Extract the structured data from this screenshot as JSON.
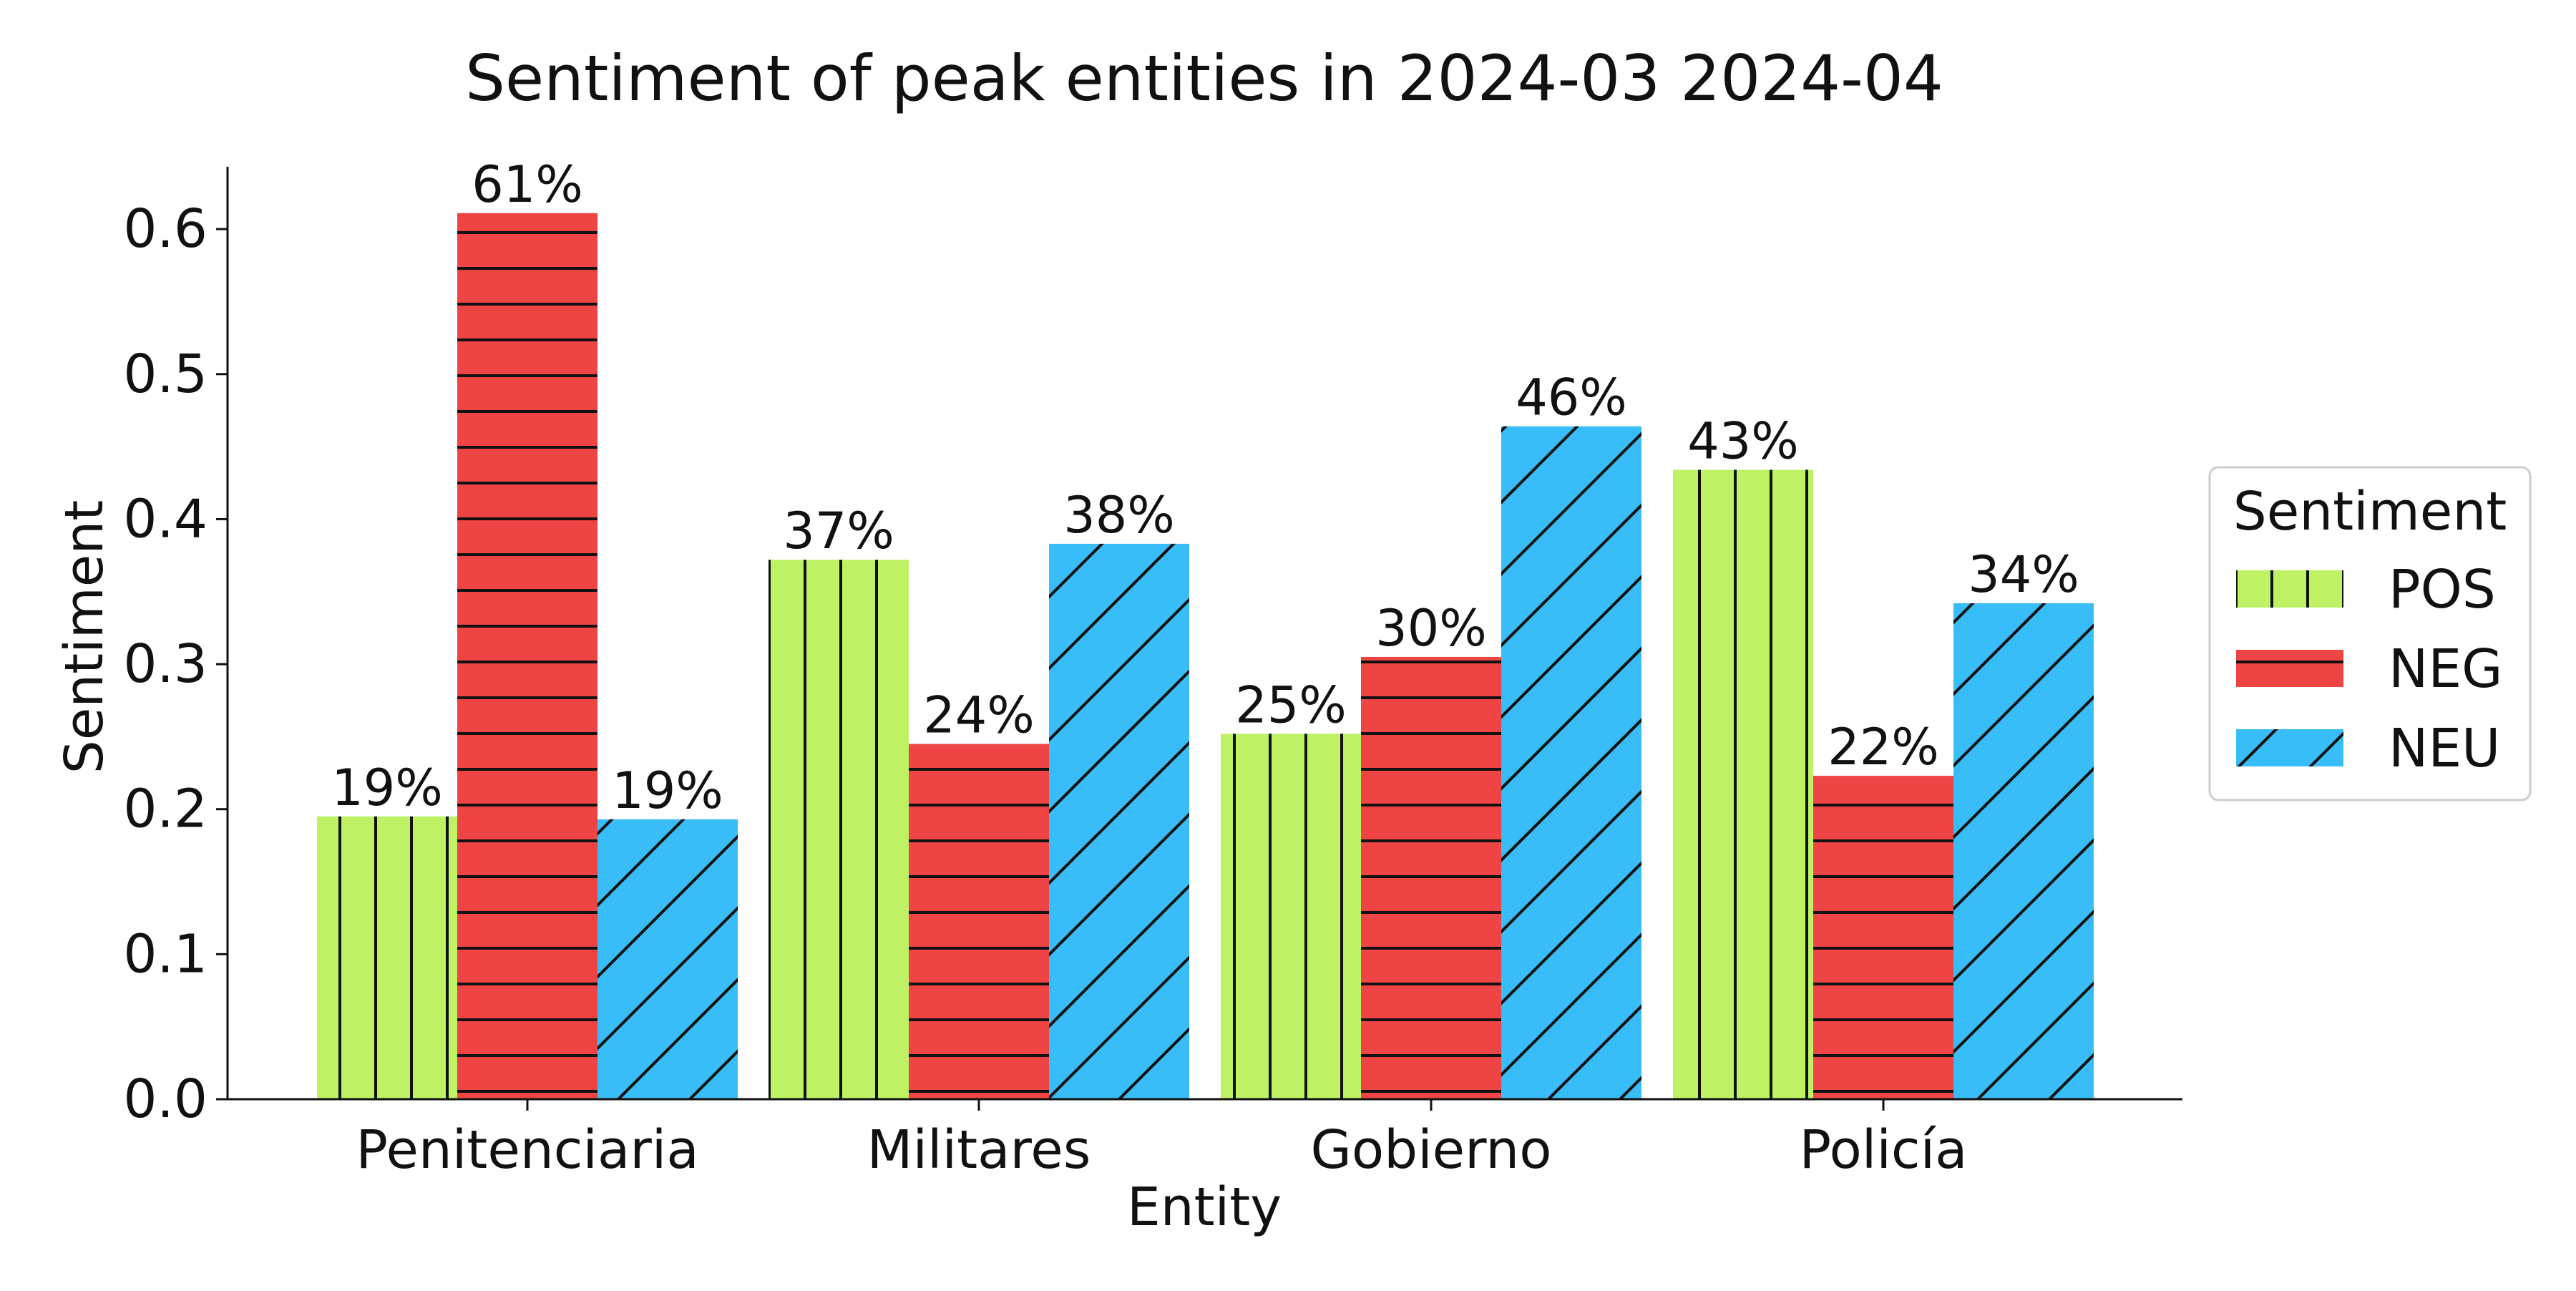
{
  "chart_data": {
    "type": "bar",
    "title": "Sentiment of peak entities in 2024-03 2024-04",
    "xlabel": "Entity",
    "ylabel": "Sentiment",
    "categories": [
      "Penitenciaria",
      "Militares",
      "Gobierno",
      "Policía"
    ],
    "ylim": [
      0,
      0.643
    ],
    "yticks": [
      "0.0",
      "0.1",
      "0.2",
      "0.3",
      "0.4",
      "0.5",
      "0.6"
    ],
    "grid": false,
    "legend": {
      "title": "Sentiment",
      "placement": "center-right"
    },
    "series": [
      {
        "name": "POS",
        "values": [
          0.195,
          0.372,
          0.252,
          0.434
        ],
        "labels": [
          "19%",
          "37%",
          "25%",
          "43%"
        ],
        "color": "#bef264",
        "hatch": "vertical"
      },
      {
        "name": "NEG",
        "values": [
          0.611,
          0.245,
          0.305,
          0.223
        ],
        "labels": [
          "61%",
          "24%",
          "30%",
          "22%"
        ],
        "color": "#ef4444",
        "hatch": "horizontal"
      },
      {
        "name": "NEU",
        "values": [
          0.193,
          0.383,
          0.464,
          0.342
        ],
        "labels": [
          "19%",
          "38%",
          "46%",
          "34%"
        ],
        "color": "#38bdf8",
        "hatch": "diagonal"
      }
    ]
  }
}
